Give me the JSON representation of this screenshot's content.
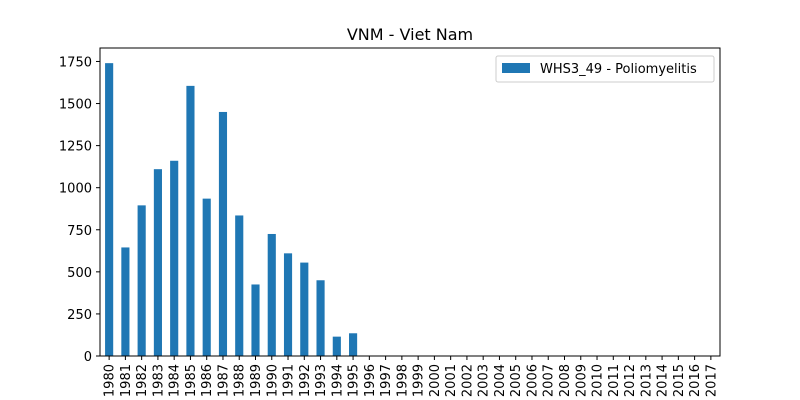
{
  "chart_data": {
    "type": "bar",
    "title": "VNM - Viet Nam",
    "xlabel": "",
    "ylabel": "",
    "categories": [
      "1980",
      "1981",
      "1982",
      "1983",
      "1984",
      "1985",
      "1986",
      "1987",
      "1988",
      "1989",
      "1990",
      "1991",
      "1992",
      "1993",
      "1994",
      "1995",
      "1996",
      "1997",
      "1998",
      "1999",
      "2000",
      "2001",
      "2002",
      "2003",
      "2004",
      "2005",
      "2006",
      "2007",
      "2008",
      "2009",
      "2010",
      "2011",
      "2012",
      "2013",
      "2014",
      "2015",
      "2016",
      "2017"
    ],
    "series": [
      {
        "name": "WHS3_49 - Poliomyelitis",
        "color": "#1f77b4",
        "values": [
          1740,
          645,
          895,
          1110,
          1160,
          1605,
          935,
          1450,
          835,
          425,
          725,
          610,
          555,
          450,
          115,
          135,
          0,
          0,
          0,
          0,
          0,
          0,
          0,
          0,
          0,
          0,
          0,
          0,
          0,
          0,
          0,
          0,
          0,
          0,
          0,
          0,
          0,
          0
        ]
      }
    ],
    "yticks": [
      0,
      250,
      500,
      750,
      1000,
      1250,
      1500,
      1750
    ],
    "ylim": [
      0,
      1830
    ],
    "grid": false,
    "legend_position": "top-right"
  }
}
